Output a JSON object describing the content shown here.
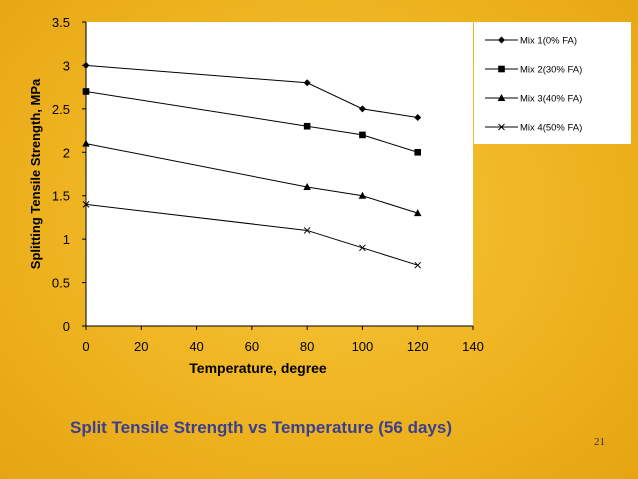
{
  "chart_data": {
    "type": "line",
    "title": "",
    "xlabel": "Temperature, degree",
    "ylabel": "Splitting Tensile Strength, MPa",
    "xlim": [
      0,
      140
    ],
    "ylim": [
      0,
      3.5
    ],
    "xticks": [
      0,
      20,
      40,
      60,
      80,
      100,
      120,
      140
    ],
    "yticks": [
      0,
      0.5,
      1,
      1.5,
      2,
      2.5,
      3,
      3.5
    ],
    "xtick_labels": [
      "0",
      "20",
      "40",
      "60",
      "80",
      "100",
      "120",
      "140"
    ],
    "ytick_labels": [
      "0",
      "0.5",
      "1",
      "1.5",
      "2",
      "2.5",
      "3",
      "3.5"
    ],
    "x": [
      0,
      80,
      100,
      120
    ],
    "series": [
      {
        "name": "Mix 1(0% FA)",
        "marker": "diamond",
        "values": [
          3.0,
          2.8,
          2.5,
          2.4
        ]
      },
      {
        "name": "Mix 2(30% FA)",
        "marker": "square",
        "values": [
          2.7,
          2.3,
          2.2,
          2.0
        ]
      },
      {
        "name": "Mix 3(40% FA)",
        "marker": "triangle",
        "values": [
          2.1,
          1.6,
          1.5,
          1.3
        ]
      },
      {
        "name": "Mix 4(50% FA)",
        "marker": "x",
        "values": [
          1.4,
          1.1,
          0.9,
          0.7
        ]
      }
    ],
    "grid": false,
    "legend": "top-right"
  },
  "caption": "Split Tensile Strength vs Temperature (56 days)",
  "page_number": "21"
}
